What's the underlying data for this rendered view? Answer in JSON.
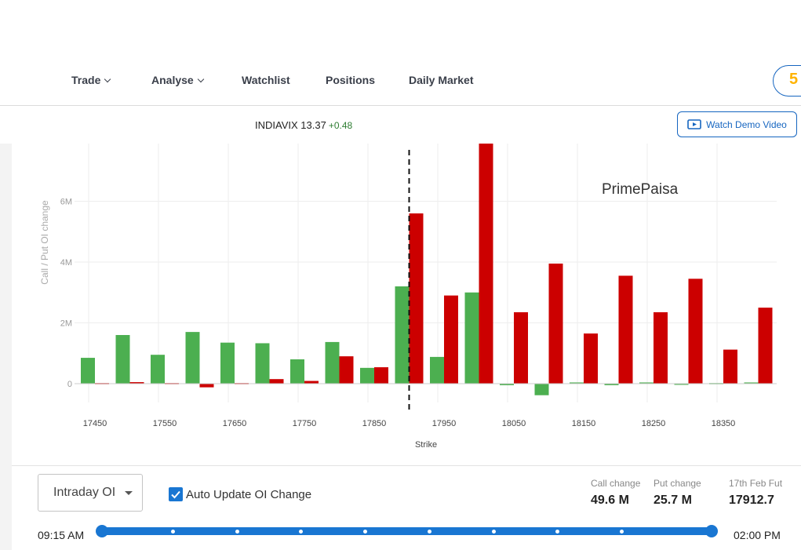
{
  "nav": {
    "items": [
      {
        "label": "Trade",
        "dropdown": true
      },
      {
        "label": "Analyse",
        "dropdown": true
      },
      {
        "label": "Watchlist",
        "dropdown": false
      },
      {
        "label": "Positions",
        "dropdown": false
      },
      {
        "label": "Daily Market",
        "dropdown": false
      }
    ],
    "badge_number": "5"
  },
  "ticker": {
    "name": "INDIAVIX",
    "value": "13.37",
    "change": "+0.48"
  },
  "demo_button": {
    "label": "Watch Demo Video",
    "icon": "play-screen-icon"
  },
  "colors": {
    "call": "#4caf50",
    "put": "#cc0000",
    "accent": "#1976d2"
  },
  "chart_data": {
    "type": "bar",
    "watermark": "PrimePaisa",
    "xlabel": "Strike",
    "ylabel": "Call / Put OI change",
    "ylim": [
      -1000000,
      7900000
    ],
    "yticks": [
      {
        "v": 0,
        "label": "0"
      },
      {
        "v": 2000000,
        "label": "2M"
      },
      {
        "v": 4000000,
        "label": "4M"
      },
      {
        "v": 6000000,
        "label": "6M"
      }
    ],
    "x_tick_labels": [
      "17450",
      "17550",
      "17650",
      "17750",
      "17850",
      "17950",
      "18050",
      "18150",
      "18250",
      "18350"
    ],
    "categories": [
      17450,
      17500,
      17550,
      17600,
      17650,
      17700,
      17750,
      17800,
      17850,
      17900,
      17950,
      18000,
      18050,
      18100,
      18150,
      18200,
      18250,
      18300,
      18350,
      18400
    ],
    "series": [
      {
        "name": "Call",
        "values": [
          850000,
          1600000,
          950000,
          1700000,
          1350000,
          1330000,
          800000,
          1370000,
          520000,
          3200000,
          880000,
          3000000,
          -50000,
          -380000,
          40000,
          -50000,
          40000,
          -20000,
          20000,
          40000
        ]
      },
      {
        "name": "Put",
        "values": [
          20000,
          50000,
          20000,
          -120000,
          20000,
          150000,
          90000,
          900000,
          540000,
          5600000,
          2900000,
          7900000,
          2350000,
          3950000,
          1650000,
          3550000,
          2350000,
          3450000,
          1120000,
          2500000
        ]
      }
    ],
    "spot_marker": 17900
  },
  "controls": {
    "mode_select": "Intraday OI",
    "auto_update_label": "Auto Update OI Change",
    "auto_update_checked": true
  },
  "stats": [
    {
      "label": "Call change",
      "value": "49.6 M"
    },
    {
      "label": "Put change",
      "value": "25.7 M"
    },
    {
      "label": "17th Feb Fut",
      "value": "17912.7"
    }
  ],
  "time_range": {
    "start": "09:15 AM",
    "end": "02:00 PM"
  }
}
